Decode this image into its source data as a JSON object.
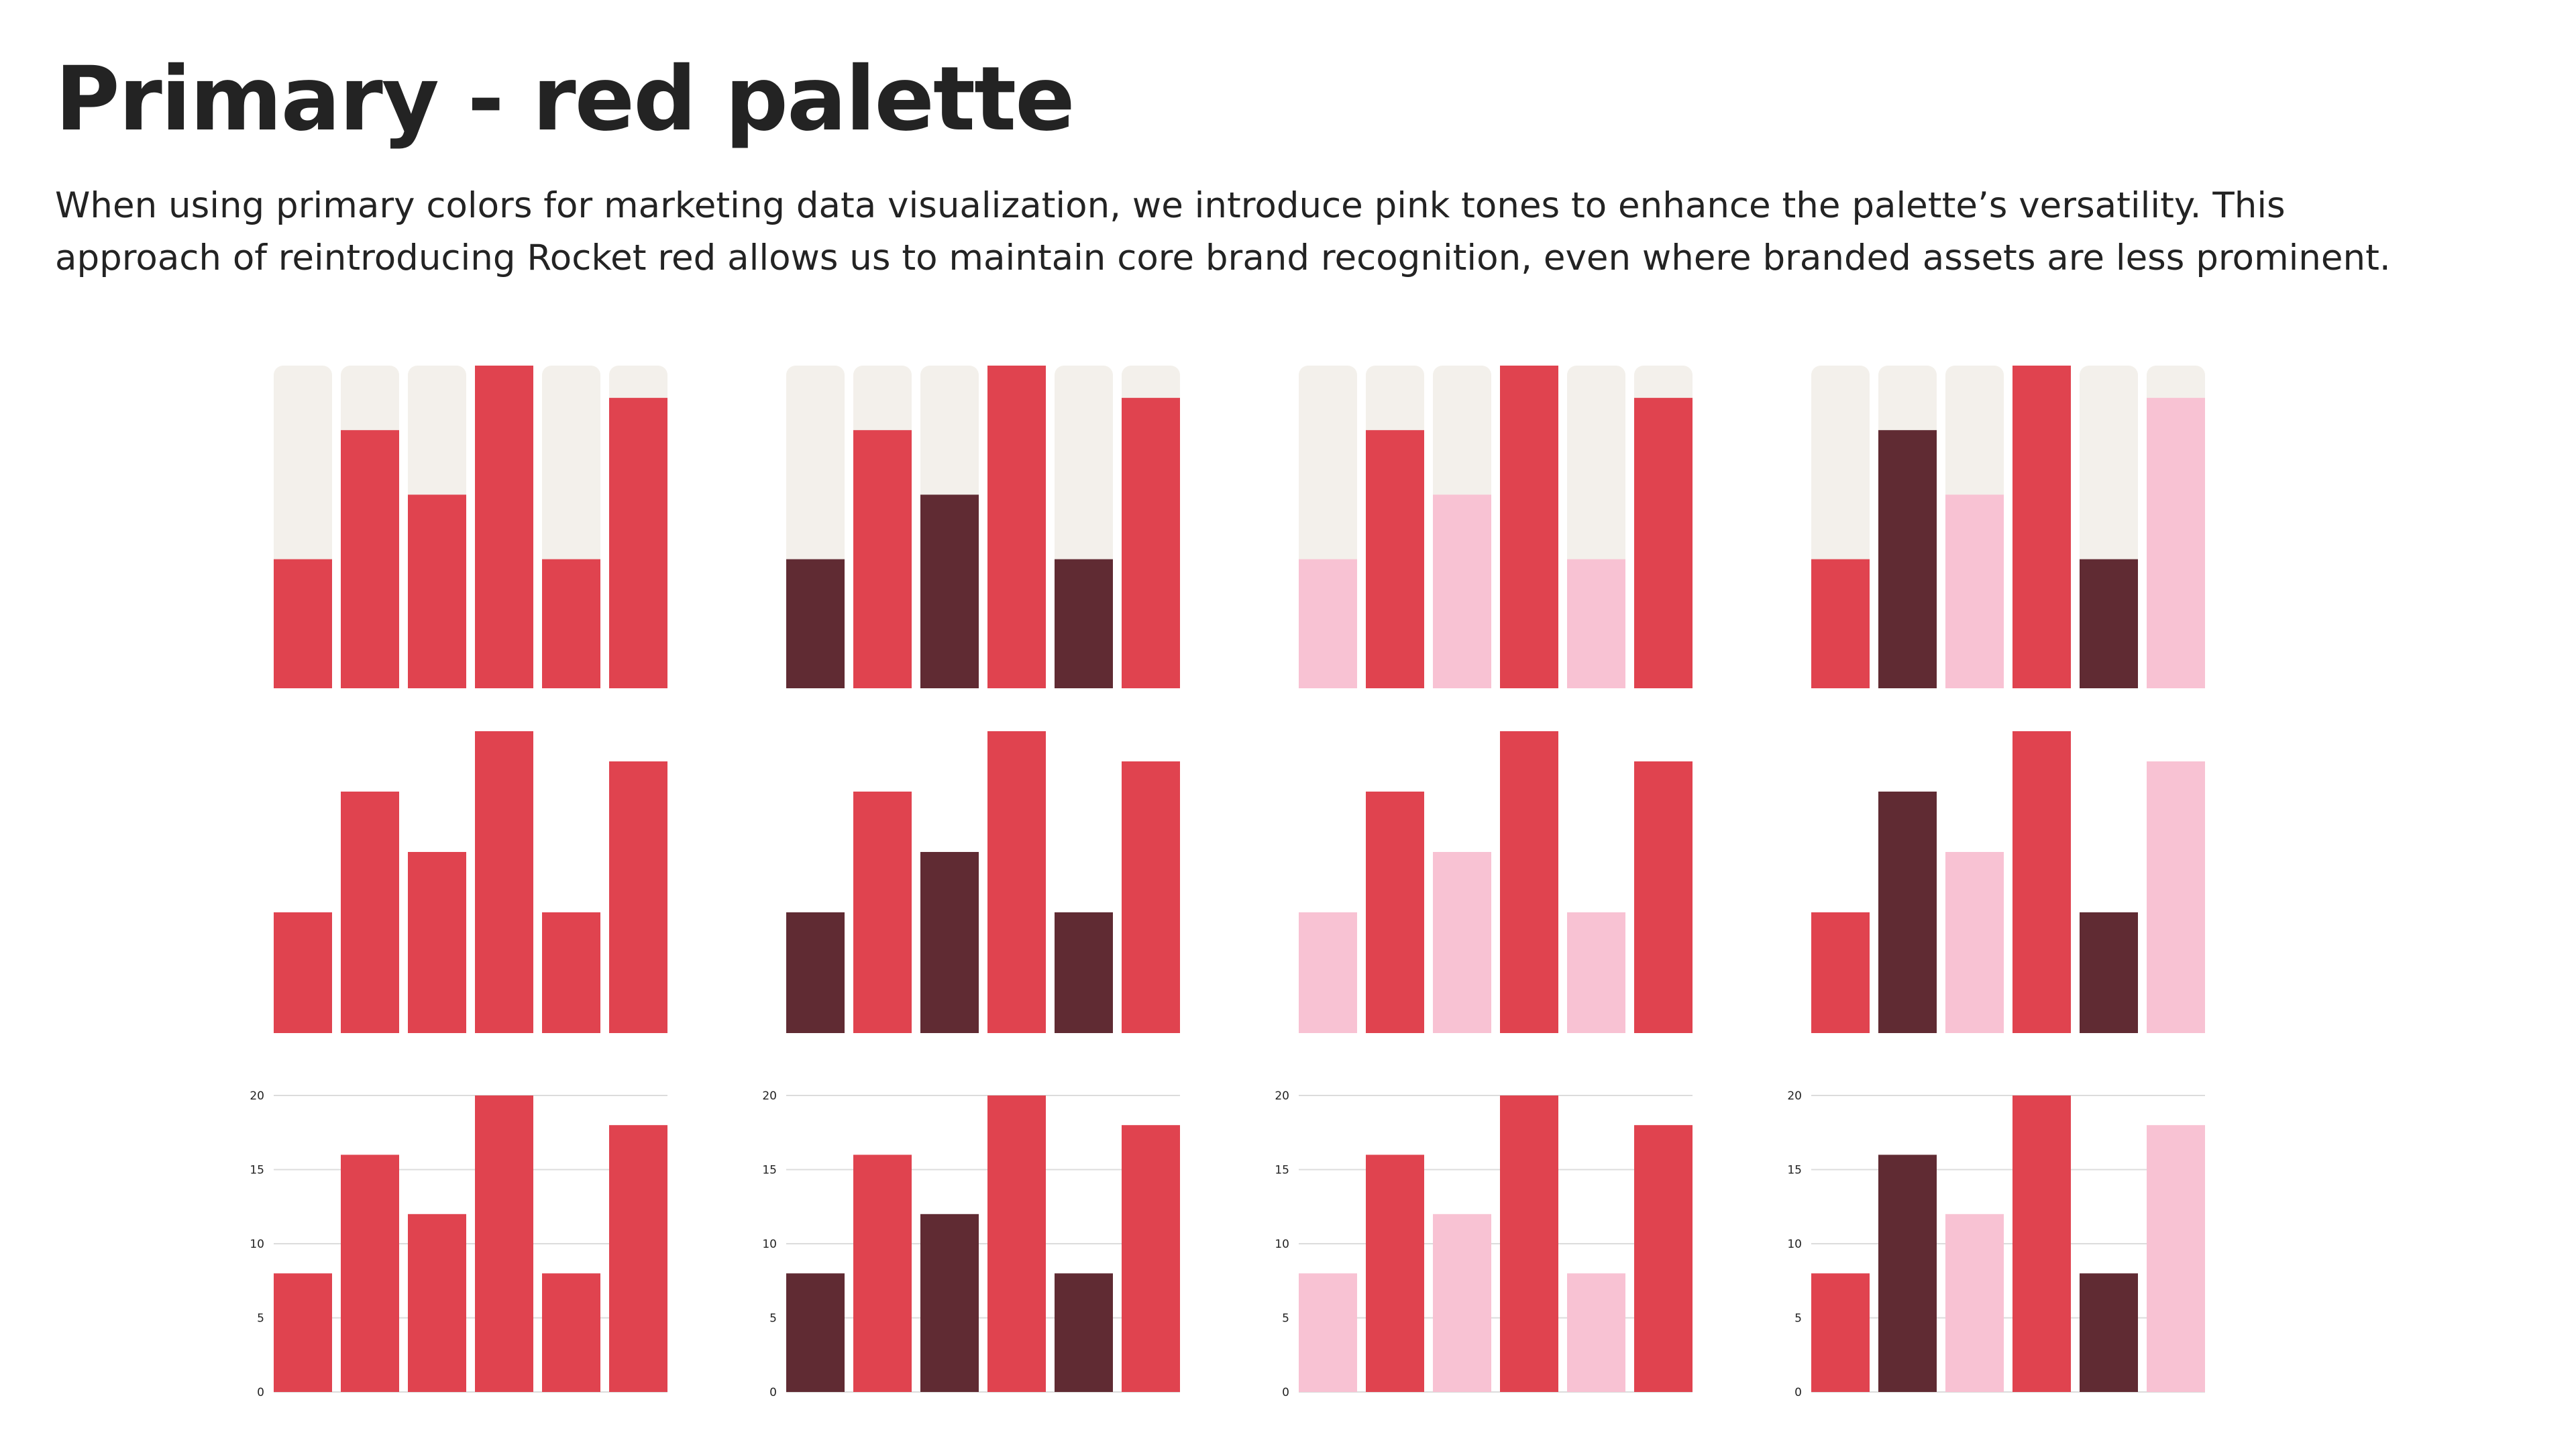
{
  "page": {
    "title": "Primary - red palette",
    "description": "When using primary colors for marketing data visualization, we introduce pink tones to enhance the palette’s versatility. This approach of reintroducing Rocket red allows us to maintain core brand recognition, even where branded assets are less prominent."
  },
  "palette": {
    "rocket_red": "#E0434F",
    "dark_red": "#602B33",
    "pink": "#F8C2D3",
    "track": "#F3F0EB",
    "gridline": "#DCDCDC",
    "text": "#232323"
  },
  "chart_data": [
    {
      "type": "bar",
      "style": "track",
      "categories": [
        "",
        "",
        "",
        "",
        "",
        ""
      ],
      "values": [
        8,
        16,
        12,
        20,
        8,
        18
      ],
      "ylim": [
        0,
        20
      ],
      "colors": [
        "#E0434F",
        "#E0434F",
        "#E0434F",
        "#E0434F",
        "#E0434F",
        "#E0434F"
      ]
    },
    {
      "type": "bar",
      "style": "track",
      "categories": [
        "",
        "",
        "",
        "",
        "",
        ""
      ],
      "values": [
        8,
        16,
        12,
        20,
        8,
        18
      ],
      "ylim": [
        0,
        20
      ],
      "colors": [
        "#602B33",
        "#E0434F",
        "#602B33",
        "#E0434F",
        "#602B33",
        "#E0434F"
      ]
    },
    {
      "type": "bar",
      "style": "track",
      "categories": [
        "",
        "",
        "",
        "",
        "",
        ""
      ],
      "values": [
        8,
        16,
        12,
        20,
        8,
        18
      ],
      "ylim": [
        0,
        20
      ],
      "colors": [
        "#F8C2D3",
        "#E0434F",
        "#F8C2D3",
        "#E0434F",
        "#F8C2D3",
        "#E0434F"
      ]
    },
    {
      "type": "bar",
      "style": "track",
      "categories": [
        "",
        "",
        "",
        "",
        "",
        ""
      ],
      "values": [
        8,
        16,
        12,
        20,
        8,
        18
      ],
      "ylim": [
        0,
        20
      ],
      "colors": [
        "#E0434F",
        "#602B33",
        "#F8C2D3",
        "#E0434F",
        "#602B33",
        "#F8C2D3"
      ]
    },
    {
      "type": "bar",
      "style": "plain",
      "categories": [
        "",
        "",
        "",
        "",
        "",
        ""
      ],
      "values": [
        8,
        16,
        12,
        20,
        8,
        18
      ],
      "ylim": [
        0,
        20
      ],
      "colors": [
        "#E0434F",
        "#E0434F",
        "#E0434F",
        "#E0434F",
        "#E0434F",
        "#E0434F"
      ]
    },
    {
      "type": "bar",
      "style": "plain",
      "categories": [
        "",
        "",
        "",
        "",
        "",
        ""
      ],
      "values": [
        8,
        16,
        12,
        20,
        8,
        18
      ],
      "ylim": [
        0,
        20
      ],
      "colors": [
        "#602B33",
        "#E0434F",
        "#602B33",
        "#E0434F",
        "#602B33",
        "#E0434F"
      ]
    },
    {
      "type": "bar",
      "style": "plain",
      "categories": [
        "",
        "",
        "",
        "",
        "",
        ""
      ],
      "values": [
        8,
        16,
        12,
        20,
        8,
        18
      ],
      "ylim": [
        0,
        20
      ],
      "colors": [
        "#F8C2D3",
        "#E0434F",
        "#F8C2D3",
        "#E0434F",
        "#F8C2D3",
        "#E0434F"
      ]
    },
    {
      "type": "bar",
      "style": "plain",
      "categories": [
        "",
        "",
        "",
        "",
        "",
        ""
      ],
      "values": [
        8,
        16,
        12,
        20,
        8,
        18
      ],
      "ylim": [
        0,
        20
      ],
      "colors": [
        "#E0434F",
        "#602B33",
        "#F8C2D3",
        "#E0434F",
        "#602B33",
        "#F8C2D3"
      ]
    },
    {
      "type": "bar",
      "style": "grid",
      "categories": [
        "",
        "",
        "",
        "",
        "",
        ""
      ],
      "values": [
        8,
        16,
        12,
        20,
        8,
        18
      ],
      "ylim": [
        0,
        20
      ],
      "yticks": [
        "0",
        "5",
        "10",
        "15",
        "20"
      ],
      "grid": true,
      "colors": [
        "#E0434F",
        "#E0434F",
        "#E0434F",
        "#E0434F",
        "#E0434F",
        "#E0434F"
      ]
    },
    {
      "type": "bar",
      "style": "grid",
      "categories": [
        "",
        "",
        "",
        "",
        "",
        ""
      ],
      "values": [
        8,
        16,
        12,
        20,
        8,
        18
      ],
      "ylim": [
        0,
        20
      ],
      "yticks": [
        "0",
        "5",
        "10",
        "15",
        "20"
      ],
      "grid": true,
      "colors": [
        "#602B33",
        "#E0434F",
        "#602B33",
        "#E0434F",
        "#602B33",
        "#E0434F"
      ]
    },
    {
      "type": "bar",
      "style": "grid",
      "categories": [
        "",
        "",
        "",
        "",
        "",
        ""
      ],
      "values": [
        8,
        16,
        12,
        20,
        8,
        18
      ],
      "ylim": [
        0,
        20
      ],
      "yticks": [
        "0",
        "5",
        "10",
        "15",
        "20"
      ],
      "grid": true,
      "colors": [
        "#F8C2D3",
        "#E0434F",
        "#F8C2D3",
        "#E0434F",
        "#F8C2D3",
        "#E0434F"
      ]
    },
    {
      "type": "bar",
      "style": "grid",
      "categories": [
        "",
        "",
        "",
        "",
        "",
        ""
      ],
      "values": [
        8,
        16,
        12,
        20,
        8,
        18
      ],
      "ylim": [
        0,
        20
      ],
      "yticks": [
        "0",
        "5",
        "10",
        "15",
        "20"
      ],
      "grid": true,
      "colors": [
        "#E0434F",
        "#602B33",
        "#F8C2D3",
        "#E0434F",
        "#602B33",
        "#F8C2D3"
      ]
    }
  ]
}
